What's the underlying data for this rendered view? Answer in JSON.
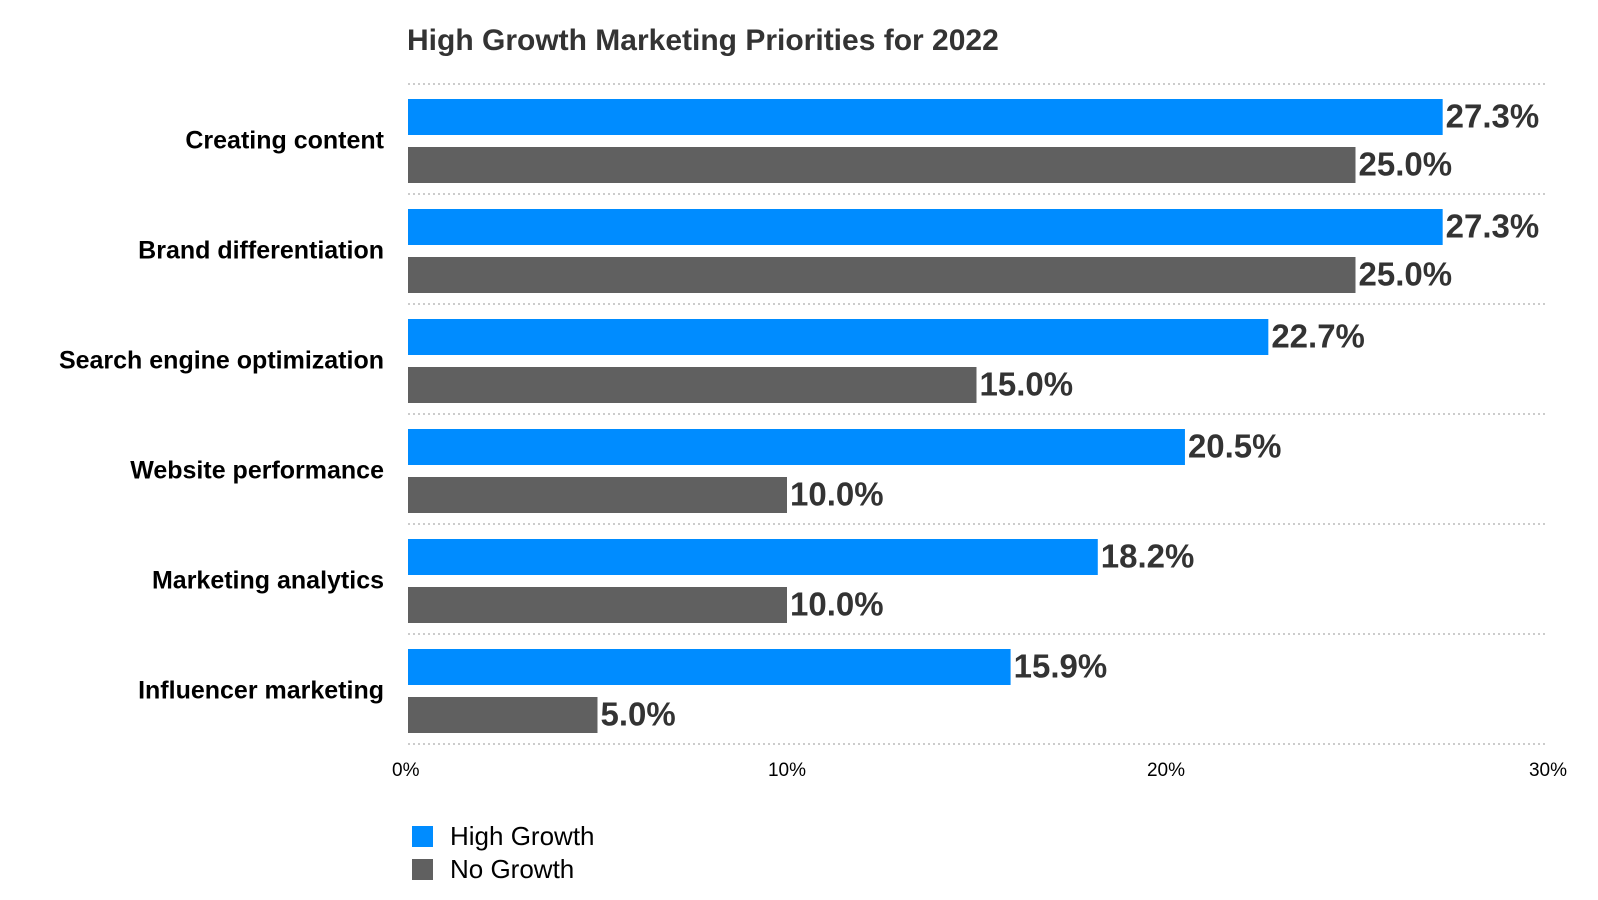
{
  "chart_data": {
    "type": "bar",
    "orientation": "horizontal",
    "title": "High Growth Marketing Priorities for 2022",
    "xlabel": "",
    "ylabel": "",
    "categories": [
      "Creating content",
      "Brand differentiation",
      "Search engine optimization",
      "Website performance",
      "Marketing analytics",
      "Influencer marketing"
    ],
    "series": [
      {
        "name": "High Growth",
        "color": "#008cff",
        "values": [
          27.3,
          27.3,
          22.7,
          20.5,
          18.2,
          15.9
        ],
        "labels": [
          "27.3%",
          "27.3%",
          "22.7%",
          "20.5%",
          "18.2%",
          "15.9%"
        ]
      },
      {
        "name": "No Growth",
        "color": "#606060",
        "values": [
          25.0,
          25.0,
          15.0,
          10.0,
          10.0,
          5.0
        ],
        "labels": [
          "25.0%",
          "25.0%",
          "15.0%",
          "10.0%",
          "10.0%",
          "5.0%"
        ]
      }
    ],
    "xlim": [
      0,
      30
    ],
    "xticks": [
      0,
      10,
      20,
      30
    ],
    "xtick_labels": [
      "0%",
      "10%",
      "20%",
      "30%"
    ],
    "grid": "horizontal dotted separators between categories",
    "legend": {
      "placement": "bottom-left",
      "entries": [
        "High Growth",
        "No Growth"
      ]
    }
  }
}
